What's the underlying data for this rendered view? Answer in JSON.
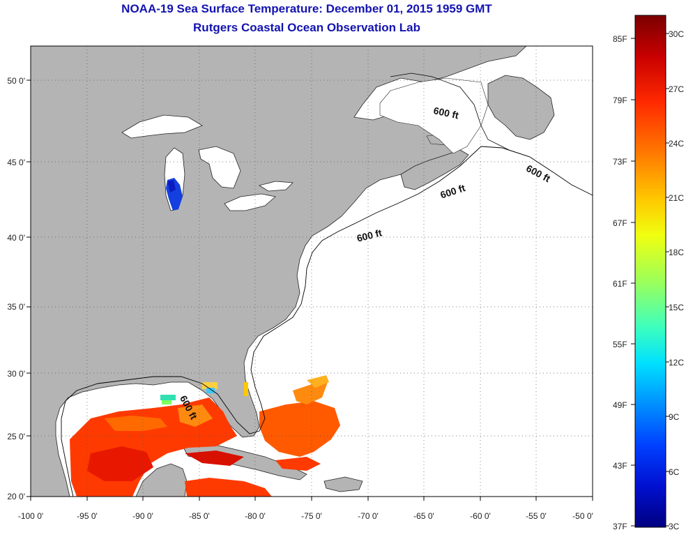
{
  "title": {
    "line1": "NOAA-19 Sea Surface Temperature:  December 01, 2015 1959 GMT",
    "line2": "Rutgers Coastal Ocean Observation Lab"
  },
  "axes": {
    "lat_ticks": [
      "50 0'",
      "45 0'",
      "40 0'",
      "35 0'",
      "30 0'",
      "25 0'",
      "20 0'"
    ],
    "lon_ticks": [
      "-100 0'",
      "-95 0'",
      "-90 0'",
      "-85 0'",
      "-80 0'",
      "-75 0'",
      "-70 0'",
      "-65 0'",
      "-60 0'",
      "-55 0'",
      "-50 0'"
    ]
  },
  "colorbar": {
    "fahrenheit_labels": [
      "85F",
      "79F",
      "73F",
      "67F",
      "61F",
      "55F",
      "49F",
      "43F",
      "37F"
    ],
    "celsius_labels": [
      "30C",
      "27C",
      "24C",
      "21C",
      "18C",
      "15C",
      "12C",
      "9C",
      "6C",
      "3C"
    ],
    "colors": [
      "#7a0000",
      "#c80000",
      "#ff2a00",
      "#ff7a00",
      "#ffc800",
      "#f0ff10",
      "#9cff5a",
      "#3cffbe",
      "#00e0ff",
      "#0090ff",
      "#0040ff",
      "#0010d0",
      "#000080"
    ]
  },
  "contours": {
    "label_1": "600 ft",
    "label_2": "600 ft",
    "label_3": "600 ft",
    "label_4": "600 ft",
    "label_5": "600 ft"
  },
  "map": {
    "land_color": "#b4b4b4",
    "ocean_color": "#ffffff",
    "grid_style": "dotted"
  }
}
